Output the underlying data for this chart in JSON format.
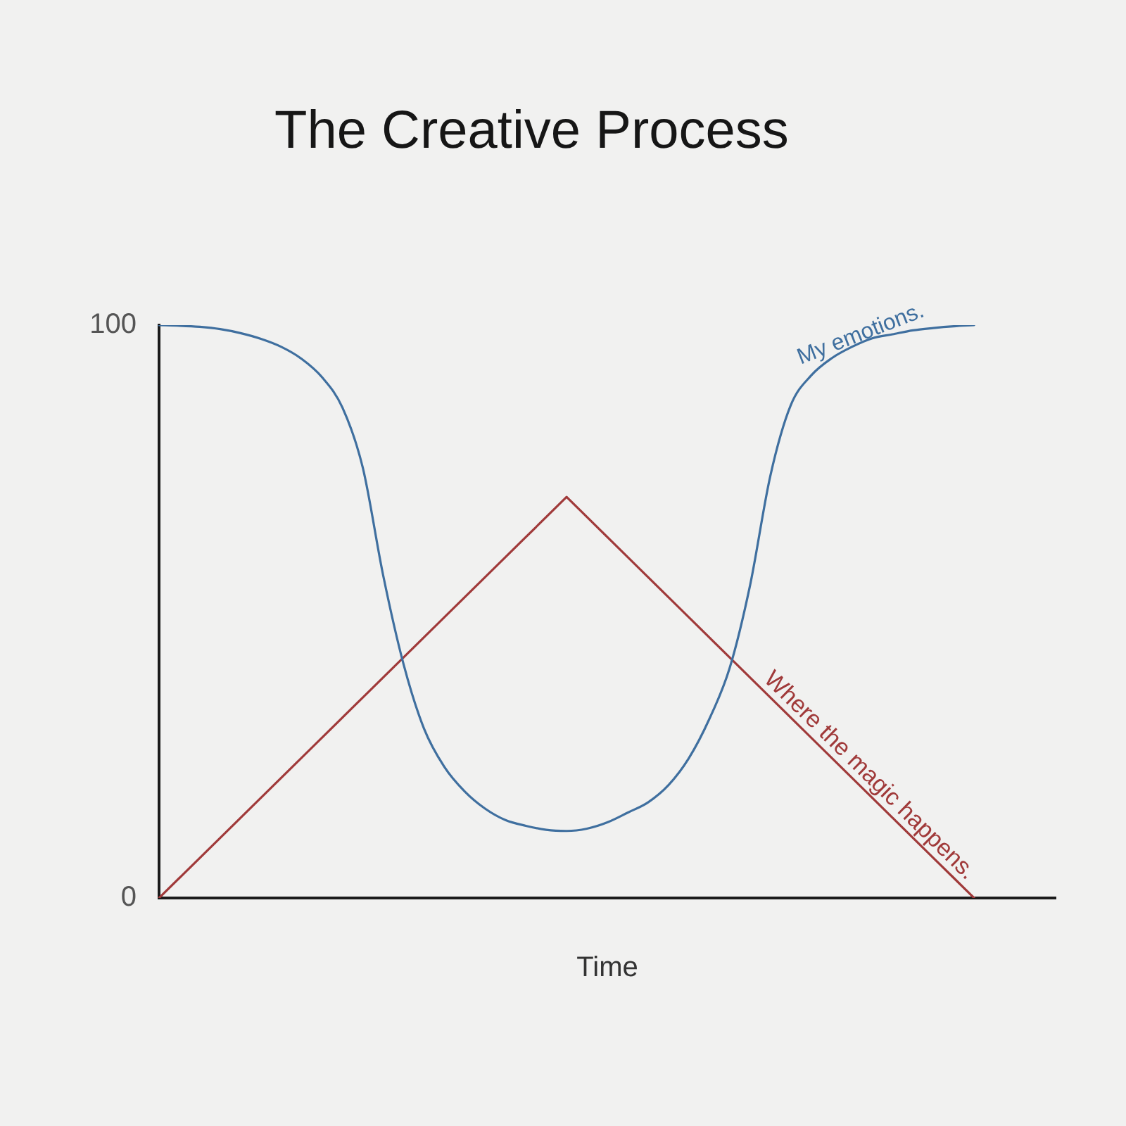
{
  "chart_data": {
    "type": "line",
    "title": "The Creative Process",
    "xlabel": "Time",
    "categories": [
      null,
      null,
      null,
      null,
      null,
      null,
      null,
      null,
      null,
      null,
      null,
      null,
      null,
      null,
      null,
      null,
      null,
      null,
      null,
      null,
      null,
      null,
      null,
      null,
      null,
      null,
      null,
      null,
      null,
      null,
      null,
      null,
      null,
      null,
      null,
      null,
      null,
      null,
      null,
      null,
      null,
      null,
      null,
      null,
      null
    ],
    "series": [
      {
        "name": "My emotions.",
        "color": "#3f6f9f",
        "values": [
          100,
          99.9,
          99.7,
          99.3,
          98.6,
          97.6,
          96.2,
          94.1,
          90.9,
          85.6,
          75.1,
          56.3,
          40.8,
          29.6,
          22.9,
          18.6,
          15.6,
          13.6,
          12.6,
          11.9,
          11.7,
          12.1,
          13.2,
          14.9,
          16.7,
          19.7,
          24.4,
          31.2,
          40.1,
          54.5,
          73.7,
          86,
          91.2,
          94.2,
          96.2,
          97.7,
          98.4,
          99.1,
          99.5,
          99.8,
          100,
          null,
          null,
          null,
          null
        ]
      },
      {
        "name": "Where the magic happens.",
        "color": "#a03a3a",
        "values": [
          0,
          3.5,
          7,
          10.5,
          14,
          17.5,
          21,
          24.5,
          28,
          31.5,
          35,
          38.5,
          42,
          45.5,
          49,
          52.5,
          56,
          59.5,
          63,
          66.5,
          70,
          66.5,
          63,
          59.5,
          56,
          52.5,
          49,
          45.5,
          42,
          38.5,
          35,
          31.5,
          28,
          24.5,
          21,
          17.5,
          14,
          10.5,
          7,
          3.5,
          0,
          null,
          null,
          null,
          null
        ]
      }
    ],
    "ylim": [
      0,
      100
    ],
    "yticks": [
      0,
      100
    ],
    "tick_labels": "y",
    "marker": "none"
  }
}
